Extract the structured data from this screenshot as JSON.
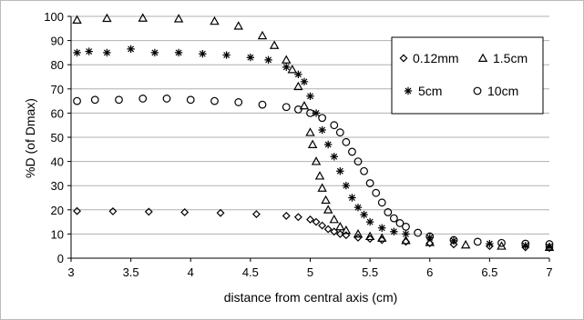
{
  "chart_data": {
    "type": "scatter",
    "title": "",
    "xlabel": "distance from central axis (cm)",
    "ylabel": "%D (of Dmax)",
    "xlim": [
      3,
      7
    ],
    "ylim": [
      0,
      100
    ],
    "x_ticks": [
      "3",
      "3.5",
      "4",
      "4.5",
      "5",
      "5.5",
      "6",
      "6.5",
      "7"
    ],
    "y_ticks": [
      "0",
      "10",
      "20",
      "30",
      "40",
      "50",
      "60",
      "70",
      "80",
      "90",
      "100"
    ],
    "grid": "horizontal",
    "legend_position": "top-right",
    "series": [
      {
        "name": "0.12mm",
        "marker": "diamond",
        "x": [
          3.05,
          3.35,
          3.65,
          3.95,
          4.25,
          4.55,
          4.8,
          4.9,
          5.0,
          5.05,
          5.1,
          5.15,
          5.2,
          5.25,
          5.3,
          5.4,
          5.5,
          5.6,
          5.8,
          6.0,
          6.2,
          6.5,
          6.8,
          7.0
        ],
        "y": [
          19.5,
          19.4,
          19.2,
          19.0,
          18.7,
          18.2,
          17.5,
          17.0,
          16.0,
          15.0,
          13.5,
          12.0,
          11.0,
          10.0,
          9.5,
          8.5,
          8.0,
          7.5,
          6.8,
          6.2,
          5.7,
          5.0,
          4.5,
          4.2
        ]
      },
      {
        "name": "1.5cm",
        "marker": "triangle",
        "x": [
          3.05,
          3.3,
          3.6,
          3.9,
          4.2,
          4.4,
          4.6,
          4.7,
          4.8,
          4.85,
          4.9,
          4.95,
          5.0,
          5.02,
          5.05,
          5.08,
          5.1,
          5.13,
          5.15,
          5.2,
          5.25,
          5.3,
          5.4,
          5.5,
          5.6,
          5.8,
          6.0,
          6.3,
          6.6,
          7.0
        ],
        "y": [
          98.5,
          99.2,
          99.3,
          99.0,
          98.0,
          96.0,
          92.0,
          88.0,
          82.0,
          78.0,
          71.0,
          63.0,
          52.0,
          47.0,
          40.0,
          34.0,
          29.0,
          24.0,
          20.0,
          16.0,
          13.0,
          11.5,
          10.0,
          9.0,
          8.3,
          7.3,
          6.5,
          5.5,
          5.0,
          4.5
        ]
      },
      {
        "name": "5cm",
        "marker": "asterisk",
        "x": [
          3.05,
          3.15,
          3.3,
          3.5,
          3.7,
          3.9,
          4.1,
          4.3,
          4.5,
          4.65,
          4.8,
          4.9,
          4.95,
          5.0,
          5.05,
          5.1,
          5.15,
          5.2,
          5.25,
          5.3,
          5.35,
          5.4,
          5.45,
          5.5,
          5.6,
          5.7,
          5.8,
          6.0,
          6.2,
          6.5,
          6.8,
          7.0
        ],
        "y": [
          85.0,
          85.5,
          85.0,
          86.5,
          85.0,
          85.0,
          84.5,
          84.0,
          83.0,
          82.0,
          79.0,
          76.0,
          73.0,
          67.0,
          60.0,
          53.0,
          47.0,
          42.0,
          36.0,
          30.0,
          25.0,
          21.0,
          18.0,
          15.0,
          12.5,
          11.0,
          10.0,
          8.5,
          7.2,
          6.0,
          5.2,
          4.8
        ]
      },
      {
        "name": "10cm",
        "marker": "circle",
        "x": [
          3.05,
          3.2,
          3.4,
          3.6,
          3.8,
          4.0,
          4.2,
          4.4,
          4.6,
          4.8,
          4.9,
          5.0,
          5.1,
          5.2,
          5.25,
          5.3,
          5.35,
          5.4,
          5.45,
          5.5,
          5.55,
          5.6,
          5.65,
          5.7,
          5.75,
          5.8,
          5.9,
          6.0,
          6.2,
          6.4,
          6.6,
          6.8,
          7.0
        ],
        "y": [
          65.0,
          65.5,
          65.5,
          66.0,
          66.0,
          65.5,
          65.0,
          64.5,
          63.5,
          62.5,
          61.5,
          60.0,
          58.0,
          55.0,
          52.0,
          48.0,
          44.0,
          40.0,
          36.0,
          31.0,
          27.0,
          23.0,
          19.0,
          16.5,
          14.5,
          13.0,
          10.5,
          9.0,
          7.5,
          6.8,
          6.3,
          6.0,
          5.8
        ]
      }
    ]
  }
}
